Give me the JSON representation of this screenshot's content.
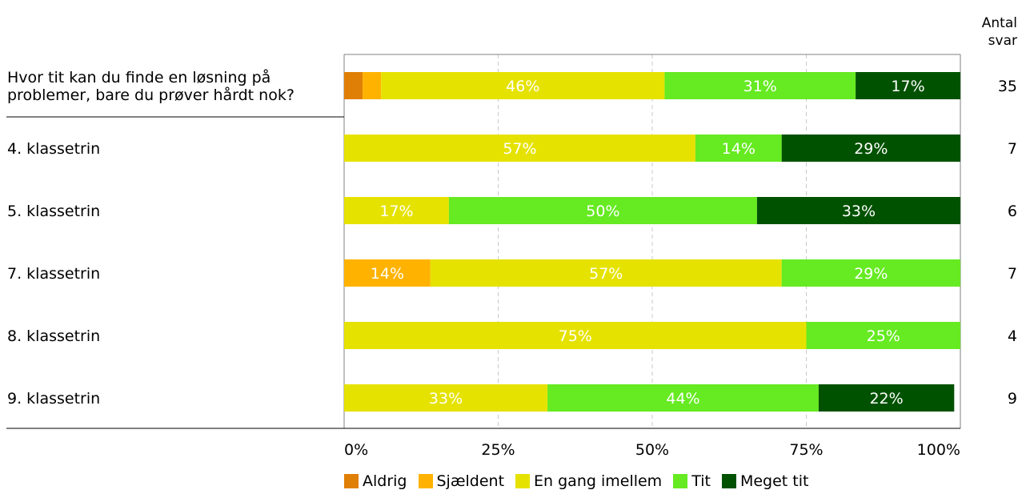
{
  "chart_data": {
    "type": "bar",
    "orientation": "horizontal",
    "stacked": true,
    "title": "",
    "xlabel": "",
    "ylabel": "",
    "count_header": [
      "Antal",
      "svar"
    ],
    "categories": [
      "Hvor tit kan du finde en løsning på problemer, bare du prøver hårdt nok?",
      "4. klassetrin",
      "5. klassetrin",
      "7. klassetrin",
      "8. klassetrin",
      "9. klassetrin"
    ],
    "category_lines": [
      [
        "Hvor tit kan du finde en løsning på",
        "problemer, bare du prøver hårdt nok?"
      ],
      [
        "4. klassetrin"
      ],
      [
        "5. klassetrin"
      ],
      [
        "7. klassetrin"
      ],
      [
        "8. klassetrin"
      ],
      [
        "9. klassetrin"
      ]
    ],
    "counts": [
      "35",
      "7",
      "6",
      "7",
      "4",
      "9"
    ],
    "series": [
      {
        "name": "Aldrig",
        "color": "#E07F05",
        "label_color": "#ffffff",
        "values": [
          3,
          0,
          0,
          0,
          0,
          0
        ]
      },
      {
        "name": "Sjældent",
        "color": "#FFB300",
        "label_color": "#ffffff",
        "values": [
          3,
          0,
          0,
          14,
          0,
          0
        ]
      },
      {
        "name": "En gang imellem",
        "color": "#E6E200",
        "label_color": "#ffffff",
        "values": [
          46,
          57,
          17,
          57,
          75,
          33
        ]
      },
      {
        "name": "Tit",
        "color": "#66EA22",
        "label_color": "#ffffff",
        "values": [
          31,
          14,
          50,
          29,
          25,
          44
        ]
      },
      {
        "name": "Meget tit",
        "color": "#005200",
        "label_color": "#ffffff",
        "values": [
          17,
          29,
          33,
          0,
          0,
          22
        ]
      }
    ],
    "data_labels": [
      [
        "",
        "",
        "46%",
        "31%",
        "17%"
      ],
      [
        "",
        "",
        "57%",
        "14%",
        "29%"
      ],
      [
        "",
        "",
        "17%",
        "50%",
        "33%"
      ],
      [
        "",
        "14%",
        "57%",
        "29%",
        ""
      ],
      [
        "",
        "",
        "75%",
        "25%",
        ""
      ],
      [
        "",
        "",
        "33%",
        "44%",
        "22%"
      ]
    ],
    "xlim": [
      0,
      100
    ],
    "xticks": [
      0,
      25,
      50,
      75,
      100
    ],
    "xtick_labels": [
      "0%",
      "25%",
      "50%",
      "75%",
      "100%"
    ],
    "grid": true,
    "legend_position": "bottom"
  }
}
